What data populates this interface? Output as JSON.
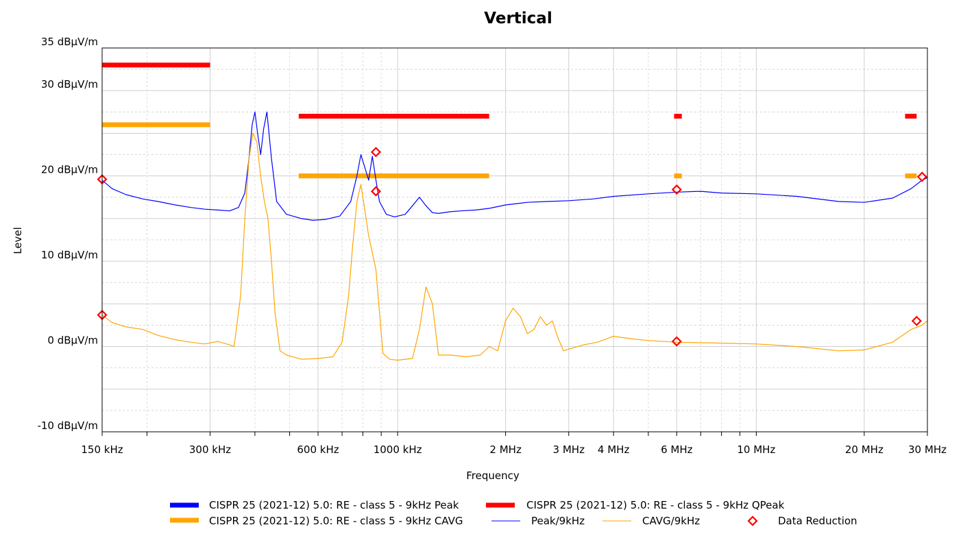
{
  "chart_data": {
    "type": "line",
    "title": "Vertical",
    "xlabel": "Frequency",
    "ylabel": "Level",
    "x_scale": "log",
    "x_unit": "Hz",
    "xlim": [
      150000,
      30000000
    ],
    "ylim": [
      -10,
      35
    ],
    "grid": true,
    "y_ticks": [
      {
        "value": 35,
        "label": "35 dBµV/m"
      },
      {
        "value": 30,
        "label": "30 dBµV/m"
      },
      {
        "value": 20,
        "label": "20 dBµV/m"
      },
      {
        "value": 10,
        "label": "10 dBµV/m"
      },
      {
        "value": 0,
        "label": "0 dBµV/m"
      },
      {
        "value": -10,
        "label": "-10 dBµV/m"
      }
    ],
    "x_ticks": [
      {
        "value": 150000,
        "label": "150 kHz"
      },
      {
        "value": 300000,
        "label": "300 kHz"
      },
      {
        "value": 600000,
        "label": "600 kHz"
      },
      {
        "value": 1000000,
        "label": "1000 kHz"
      },
      {
        "value": 2000000,
        "label": "2 MHz"
      },
      {
        "value": 3000000,
        "label": "3 MHz"
      },
      {
        "value": 4000000,
        "label": "4 MHz"
      },
      {
        "value": 6000000,
        "label": "6 MHz"
      },
      {
        "value": 10000000,
        "label": "10 MHz"
      },
      {
        "value": 20000000,
        "label": "20 MHz"
      },
      {
        "value": 30000000,
        "label": "30 MHz"
      }
    ],
    "limit_lines": [
      {
        "name": "CISPR 25 (2021-12) 5.0: RE - class 5 - 9kHz QPeak",
        "color": "#ff0000",
        "segments": [
          {
            "x1": 150000,
            "x2": 300000,
            "y": 33
          },
          {
            "x1": 530000,
            "x2": 1800000,
            "y": 27
          },
          {
            "x1": 5900000,
            "x2": 6200000,
            "y": 27
          },
          {
            "x1": 26000000,
            "x2": 28000000,
            "y": 27
          }
        ]
      },
      {
        "name": "CISPR 25 (2021-12) 5.0: RE - class 5 - 9kHz CAVG",
        "color": "#ffa500",
        "segments": [
          {
            "x1": 150000,
            "x2": 300000,
            "y": 26
          },
          {
            "x1": 530000,
            "x2": 1800000,
            "y": 20
          },
          {
            "x1": 5900000,
            "x2": 6200000,
            "y": 20
          },
          {
            "x1": 26000000,
            "x2": 28000000,
            "y": 20
          }
        ]
      }
    ],
    "series": [
      {
        "name": "Peak/9kHz",
        "color": "#0000ff",
        "x": [
          150000,
          160000,
          175000,
          195000,
          215000,
          240000,
          265000,
          290000,
          315000,
          340000,
          360000,
          375000,
          385000,
          393000,
          400000,
          407000,
          415000,
          423000,
          432000,
          445000,
          460000,
          490000,
          540000,
          580000,
          630000,
          690000,
          740000,
          770000,
          790000,
          810000,
          830000,
          850000,
          870000,
          890000,
          930000,
          980000,
          1050000,
          1100000,
          1150000,
          1200000,
          1250000,
          1300000,
          1400000,
          1500000,
          1650000,
          1800000,
          2000000,
          2300000,
          2600000,
          3000000,
          3500000,
          4000000,
          5000000,
          6000000,
          7000000,
          8000000,
          10000000,
          13000000,
          17000000,
          20000000,
          24000000,
          27000000,
          29000000,
          30000000
        ],
        "y": [
          19.5,
          18.5,
          17.8,
          17.3,
          17.0,
          16.6,
          16.3,
          16.1,
          16.0,
          15.9,
          16.3,
          18.0,
          22.0,
          26.0,
          27.5,
          25.0,
          22.5,
          25.5,
          27.5,
          22.0,
          17.0,
          15.5,
          15.0,
          14.8,
          14.9,
          15.3,
          17.0,
          20.0,
          22.5,
          21.0,
          19.5,
          22.3,
          19.5,
          17.0,
          15.5,
          15.2,
          15.5,
          16.5,
          17.5,
          16.5,
          15.7,
          15.6,
          15.8,
          15.9,
          16.0,
          16.2,
          16.6,
          16.9,
          17.0,
          17.1,
          17.3,
          17.6,
          17.9,
          18.1,
          18.2,
          18.0,
          17.9,
          17.6,
          17.0,
          16.9,
          17.4,
          18.5,
          19.5,
          19.8
        ]
      },
      {
        "name": "CAVG/9kHz",
        "color": "#ffa500",
        "x": [
          150000,
          160000,
          175000,
          195000,
          215000,
          240000,
          265000,
          290000,
          315000,
          340000,
          350000,
          365000,
          375000,
          385000,
          395000,
          405000,
          415000,
          425000,
          435000,
          445000,
          455000,
          470000,
          490000,
          540000,
          600000,
          660000,
          700000,
          730000,
          750000,
          770000,
          790000,
          810000,
          830000,
          850000,
          870000,
          890000,
          910000,
          950000,
          1000000,
          1100000,
          1150000,
          1200000,
          1250000,
          1300000,
          1400000,
          1550000,
          1700000,
          1800000,
          1900000,
          2000000,
          2100000,
          2200000,
          2300000,
          2400000,
          2500000,
          2600000,
          2700000,
          2800000,
          2900000,
          3000000,
          3300000,
          3600000,
          4000000,
          4500000,
          5000000,
          6000000,
          8000000,
          10000000,
          13000000,
          17000000,
          20000000,
          24000000,
          27000000,
          29000000,
          30000000
        ],
        "y": [
          3.7,
          2.8,
          2.3,
          2.0,
          1.3,
          0.8,
          0.5,
          0.3,
          0.6,
          0.2,
          0.0,
          6.0,
          15.0,
          22.0,
          25.0,
          24.0,
          20.0,
          17.0,
          15.0,
          10.0,
          4.0,
          -0.5,
          -1.0,
          -1.5,
          -1.4,
          -1.2,
          0.5,
          6.0,
          12.0,
          17.0,
          19.0,
          16.0,
          13.0,
          11.0,
          9.0,
          4.0,
          -0.8,
          -1.5,
          -1.6,
          -1.4,
          2.0,
          7.0,
          5.0,
          -1.0,
          -1.0,
          -1.2,
          -1.0,
          0.0,
          -0.5,
          3.0,
          4.5,
          3.5,
          1.5,
          2.0,
          3.5,
          2.5,
          3.0,
          1.0,
          -0.5,
          -0.3,
          0.2,
          0.5,
          1.2,
          0.9,
          0.7,
          0.5,
          0.4,
          0.3,
          0.0,
          -0.5,
          -0.4,
          0.5,
          2.0,
          2.5,
          3.0
        ]
      }
    ],
    "markers": {
      "name": "Data Reduction",
      "color": "#ff0000",
      "shape": "diamond",
      "points": [
        {
          "x": 150000,
          "y": 19.6
        },
        {
          "x": 150000,
          "y": 3.7
        },
        {
          "x": 870000,
          "y": 22.8
        },
        {
          "x": 870000,
          "y": 18.2
        },
        {
          "x": 6000000,
          "y": 18.4
        },
        {
          "x": 6000000,
          "y": 0.6
        },
        {
          "x": 28000000,
          "y": 3.0
        },
        {
          "x": 29000000,
          "y": 19.9
        }
      ]
    },
    "legend": {
      "placement": "bottom",
      "items": [
        {
          "label": "CISPR 25 (2021-12) 5.0: RE - class 5 - 9kHz Peak",
          "color": "#0000ff",
          "style": "thick-line"
        },
        {
          "label": "CISPR 25 (2021-12) 5.0: RE - class 5 - 9kHz QPeak",
          "color": "#ff0000",
          "style": "thick-line"
        },
        {
          "label": "CISPR 25 (2021-12) 5.0: RE - class 5 - 9kHz CAVG",
          "color": "#ffa500",
          "style": "thick-line"
        },
        {
          "label": "Peak/9kHz",
          "color": "#0000ff",
          "style": "thin-line"
        },
        {
          "label": "CAVG/9kHz",
          "color": "#ffa500",
          "style": "thin-line"
        },
        {
          "label": "Data Reduction",
          "color": "#ff0000",
          "style": "diamond"
        }
      ]
    }
  }
}
